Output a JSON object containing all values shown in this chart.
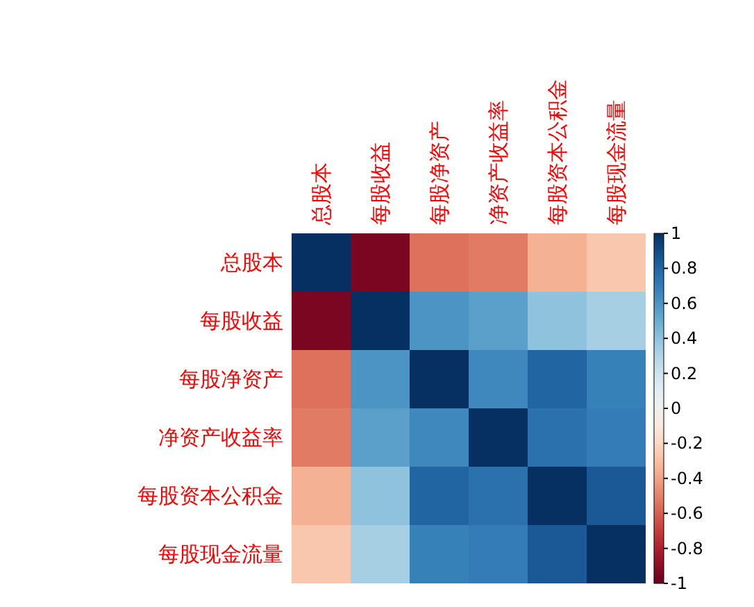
{
  "chart_data": {
    "type": "heatmap",
    "categories": [
      "总股本",
      "每股收益",
      "每股净资产",
      "净资产收益率",
      "每股资本公积金",
      "每股现金流量"
    ],
    "y_categories": [
      "总股本",
      "每股收益",
      "每股净资产",
      "净资产收益率",
      "每股资本公积金",
      "每股现金流量"
    ],
    "cells": [
      [
        1,
        -0.95,
        -0.55,
        -0.52,
        -0.35,
        -0.27
      ],
      [
        -0.95,
        1,
        0.6,
        0.55,
        0.4,
        0.33
      ],
      [
        -0.55,
        0.6,
        1,
        0.65,
        0.8,
        0.68
      ],
      [
        -0.52,
        0.55,
        0.65,
        1,
        0.75,
        0.7
      ],
      [
        -0.35,
        0.4,
        0.8,
        0.75,
        1,
        0.85
      ],
      [
        -0.27,
        0.33,
        0.68,
        0.7,
        0.85,
        1
      ]
    ],
    "clim": [
      -1,
      1
    ],
    "cticks": [
      1,
      0.8,
      0.6,
      0.4,
      0.2,
      0,
      -0.2,
      -0.4,
      -0.6,
      -0.8,
      -1
    ]
  }
}
